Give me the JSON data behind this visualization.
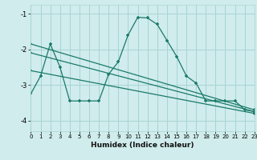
{
  "xlabel": "Humidex (Indice chaleur)",
  "xlim_min": 0,
  "xlim_max": 23,
  "ylim_min": -4.3,
  "ylim_max": -0.75,
  "yticks": [
    -4,
    -3,
    -2,
    -1
  ],
  "xticks": [
    0,
    1,
    2,
    3,
    4,
    5,
    6,
    7,
    8,
    9,
    10,
    11,
    12,
    13,
    14,
    15,
    16,
    17,
    18,
    19,
    20,
    21,
    22,
    23
  ],
  "background_color": "#d0ecec",
  "grid_color": "#a8d4d4",
  "line_color": "#1a7a6a",
  "line1_x": [
    0,
    1,
    2,
    3,
    4,
    5,
    6,
    7,
    8,
    9,
    10,
    11,
    12,
    13,
    14,
    15,
    16,
    17,
    18,
    19,
    20,
    21,
    22,
    23
  ],
  "line1_y": [
    -3.25,
    -2.75,
    -1.85,
    -2.5,
    -3.45,
    -3.45,
    -3.45,
    -3.45,
    -2.7,
    -2.35,
    -1.6,
    -1.1,
    -1.12,
    -1.3,
    -1.75,
    -2.2,
    -2.75,
    -2.95,
    -3.45,
    -3.45,
    -3.45,
    -3.45,
    -3.7,
    -3.75
  ],
  "line2_x": [
    0,
    23
  ],
  "line2_y": [
    -1.85,
    -3.7
  ],
  "line3_x": [
    0,
    23
  ],
  "line3_y": [
    -2.1,
    -3.75
  ],
  "line4_x": [
    0,
    23
  ],
  "line4_y": [
    -2.6,
    -3.8
  ]
}
